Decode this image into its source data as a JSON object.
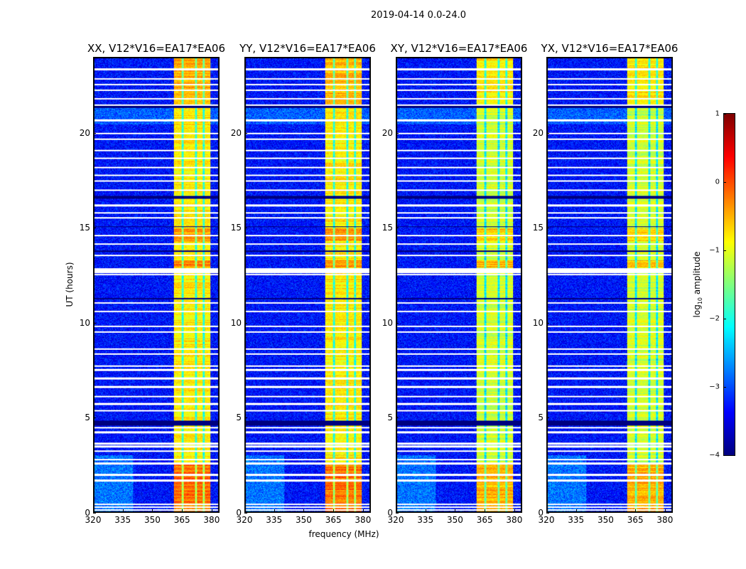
{
  "chart_data": {
    "type": "heatmap",
    "title": "2019-04-14 0.0-24.0",
    "panels": [
      {
        "title": "XX, V12*V16=EA17*EA06"
      },
      {
        "title": "YY, V12*V16=EA17*EA06"
      },
      {
        "title": "XY, V12*V16=EA17*EA06"
      },
      {
        "title": "YX, V12*V16=EA17*EA06"
      }
    ],
    "xlabel": "frequency (MHz)",
    "ylabel": "UT (hours)",
    "xlim": [
      320,
      384
    ],
    "ylim": [
      0,
      24
    ],
    "xticks": [
      "320",
      "335",
      "350",
      "365",
      "380"
    ],
    "xtick_values": [
      320,
      335,
      350,
      365,
      380
    ],
    "yticks": [
      "0",
      "5",
      "10",
      "15",
      "20"
    ],
    "ytick_values": [
      0,
      5,
      10,
      15,
      20
    ],
    "colormap": "jet",
    "colorbar": {
      "label_main": "log",
      "label_sub": "10",
      "label_rest": " amplitude",
      "range": [
        -4,
        1
      ],
      "ticks": [
        "1",
        "0",
        "−1",
        "−2",
        "−3",
        "−4"
      ],
      "tick_values": [
        1,
        0,
        -1,
        -2,
        -3,
        -4
      ]
    },
    "background_level": -3.3,
    "rfi_band_mhz": [
      361,
      380
    ],
    "rfi_band_level": -0.8,
    "rfi_band_dips_mhz": [
      365.5,
      372.5,
      376.5
    ],
    "flagged_hours": [
      0.1,
      0.25,
      0.4,
      1.65,
      1.95,
      2.55,
      2.75,
      3.2,
      3.45,
      3.6,
      4.2,
      4.45,
      5.35,
      5.7,
      6.1,
      6.6,
      7.05,
      7.5,
      7.7,
      8.35,
      8.6,
      9.5,
      9.8,
      10.6,
      11.05,
      12.55,
      12.65,
      12.75,
      12.85,
      13.55,
      14.15,
      14.6,
      15.55,
      15.8,
      16.2,
      17.0,
      17.5,
      17.8,
      18.2,
      18.7,
      19.1,
      19.7,
      20.0,
      20.7,
      21.5,
      21.85,
      22.3,
      22.6,
      22.9,
      23.4
    ],
    "dead_hours": [
      [
        4.55,
        4.8
      ],
      [
        16.55,
        16.7
      ],
      [
        21.35,
        21.45
      ],
      [
        13.75,
        13.8
      ],
      [
        15.05,
        15.1
      ],
      [
        11.25,
        11.3
      ]
    ]
  }
}
